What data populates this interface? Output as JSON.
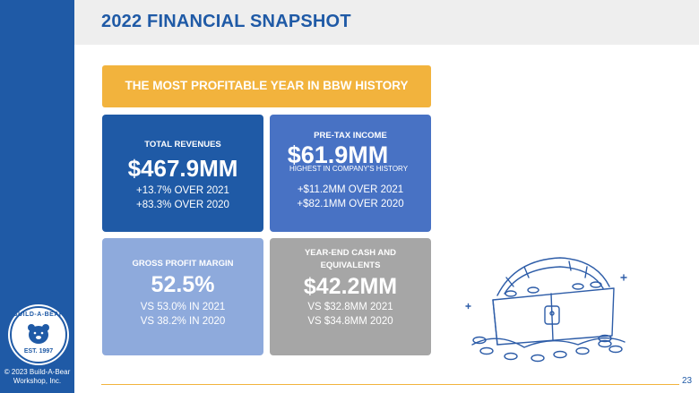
{
  "header": {
    "title": "2022 FINANCIAL SNAPSHOT"
  },
  "banner": {
    "text": "THE MOST PROFITABLE YEAR IN BBW HISTORY"
  },
  "cards": {
    "revenues": {
      "label": "TOTAL REVENUES",
      "value": "$467.9MM",
      "line1": "+13.7% OVER 2021",
      "line2": "+83.3% OVER 2020"
    },
    "pretax": {
      "label": "PRE-TAX INCOME",
      "value": "$61.9MM",
      "note": "HIGHEST IN COMPANY'S HISTORY",
      "line1": "+$11.2MM OVER 2021",
      "line2": "+$82.1MM OVER 2020"
    },
    "margin": {
      "label": "GROSS PROFIT MARGIN",
      "value": "52.5%",
      "line1": "VS 53.0% IN 2021",
      "line2": "VS 38.2% IN 2020"
    },
    "cash": {
      "label1": "YEAR-END CASH AND",
      "label2": "EQUIVALENTS",
      "value": "$42.2MM",
      "line1": "VS $32.8MM 2021",
      "line2": "VS $34.8MM 2020"
    }
  },
  "sidebar": {
    "logo_top": "BUILD-A-BEAR",
    "logo_bottom": "EST. 1997",
    "copyright_line1": "© 2023 Build-A-Bear",
    "copyright_line2": "Workshop, Inc."
  },
  "footer": {
    "page_number": "23"
  },
  "colors": {
    "brand_blue": "#1f5aa6",
    "gold": "#f2b33d",
    "mid_blue": "#4872c4",
    "light_blue": "#8eaadc",
    "gray": "#a6a6a6"
  },
  "icons": {
    "logo": "bear-logo-icon",
    "illustration": "treasure-chest-icon"
  }
}
